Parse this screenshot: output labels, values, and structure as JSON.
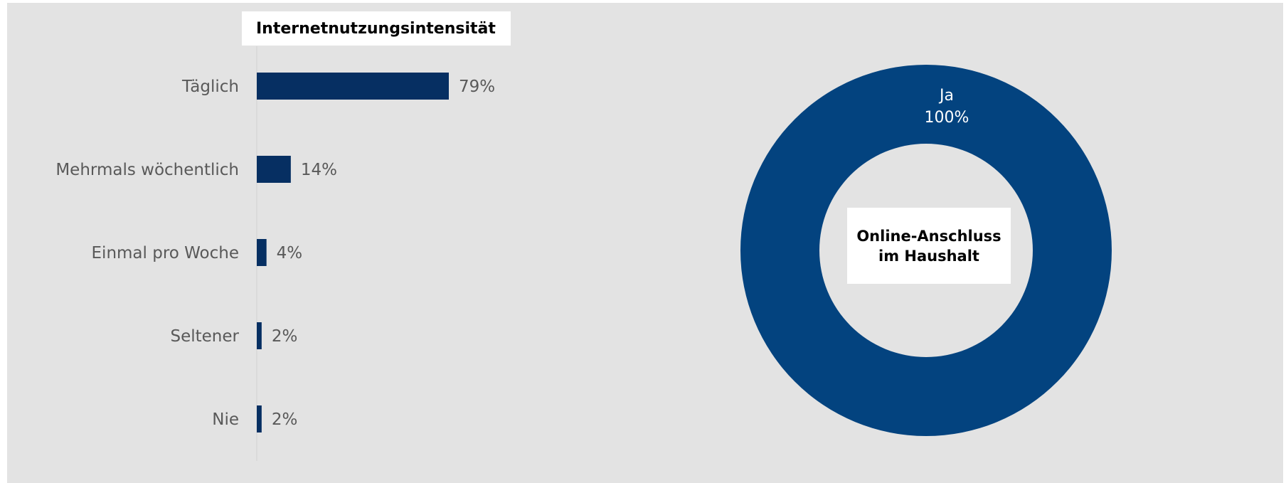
{
  "chart_data": [
    {
      "type": "bar",
      "orientation": "horizontal",
      "title": "Internetnutzungsintensität",
      "categories": [
        "Täglich",
        "Mehrmals wöchentlich",
        "Einmal pro Woche",
        "Seltener",
        "Nie"
      ],
      "values": [
        79,
        14,
        4,
        2,
        2
      ],
      "value_labels": [
        "79%",
        "14%",
        "4%",
        "2%",
        "2%"
      ],
      "unit": "%",
      "xlim": [
        0,
        100
      ],
      "grid": false,
      "colors": {
        "bar": "#062f62"
      }
    },
    {
      "type": "pie",
      "variant": "donut",
      "title": "Online-Anschluss im Haushalt",
      "categories": [
        "Ja"
      ],
      "values": [
        100
      ],
      "value_labels": [
        "100%"
      ],
      "unit": "%",
      "colors": {
        "slice": "#03437f"
      }
    }
  ],
  "colors": {
    "panel_background": "#e3e3e3",
    "label_text": "#595959",
    "donut_label_text": "#ffffff"
  }
}
